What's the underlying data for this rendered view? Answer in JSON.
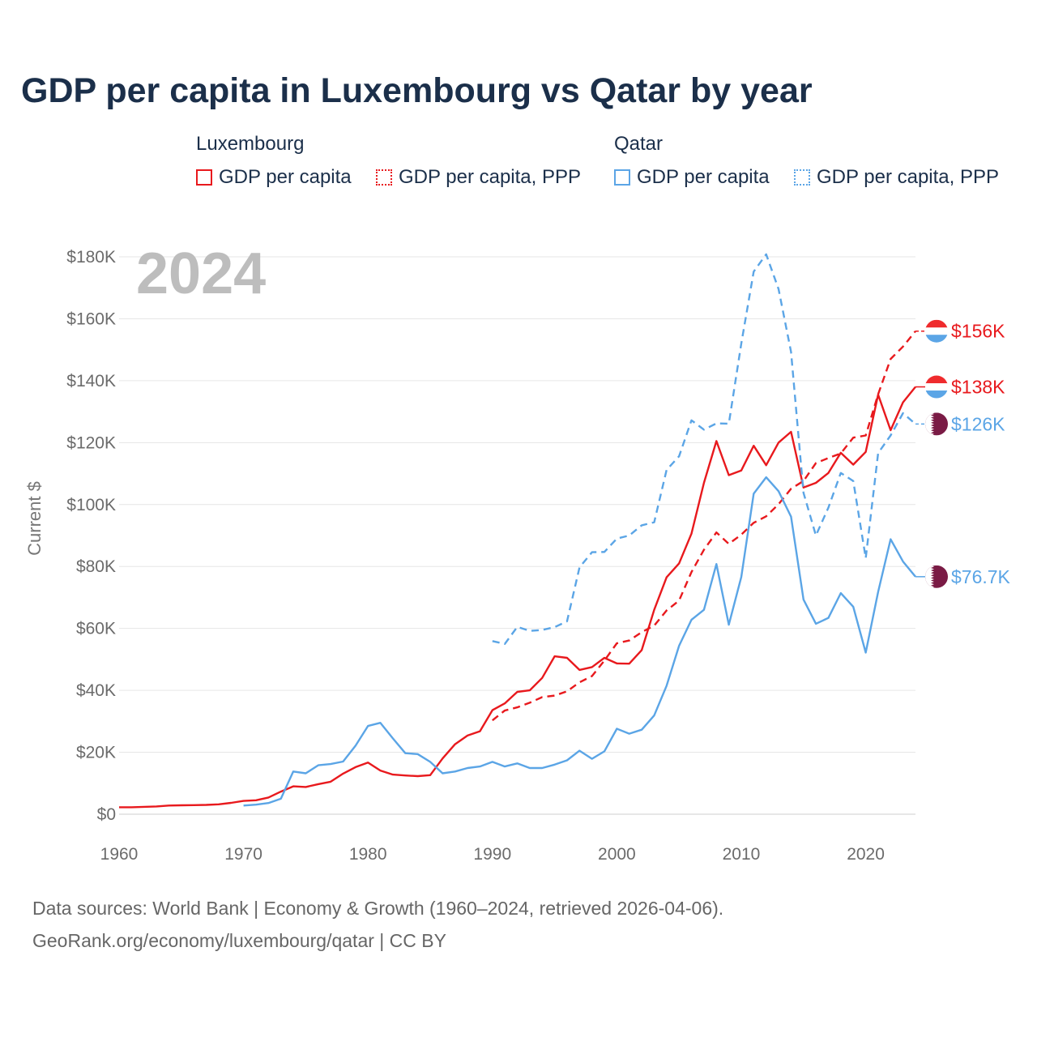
{
  "title": "GDP per capita in Luxembourg vs Qatar by year",
  "legend": {
    "groups": [
      {
        "name": "Luxembourg",
        "items": [
          {
            "label": "GDP per capita",
            "style": "solid",
            "color": "#e8191d"
          },
          {
            "label": "GDP per capita, PPP",
            "style": "dotted",
            "color": "#e8191d"
          }
        ]
      },
      {
        "name": "Qatar",
        "items": [
          {
            "label": "GDP per capita",
            "style": "solid",
            "color": "#5ba5e6"
          },
          {
            "label": "GDP per capita, PPP",
            "style": "dotted",
            "color": "#5ba5e6"
          }
        ]
      }
    ]
  },
  "year_label": "2024",
  "footer": {
    "line1": "Data sources: World Bank | Economy & Growth (1960–2024, retrieved 2026-04-06).",
    "line2": "GeoRank.org/economy/luxembourg/qatar | CC BY"
  },
  "chart_data": {
    "type": "line",
    "title": "GDP per capita in Luxembourg vs Qatar by year",
    "xlabel": "",
    "ylabel": "Current $",
    "xlim": [
      1960,
      2024
    ],
    "ylim": [
      0,
      180000
    ],
    "x_ticks": [
      1960,
      1970,
      1980,
      1990,
      2000,
      2010,
      2020
    ],
    "x_tick_labels": [
      "1960",
      "1970",
      "1980",
      "1990",
      "2000",
      "2010",
      "2020"
    ],
    "y_ticks": [
      0,
      20000,
      40000,
      60000,
      80000,
      100000,
      120000,
      140000,
      160000,
      180000
    ],
    "y_tick_labels": [
      "$0",
      "$20K",
      "$40K",
      "$60K",
      "$80K",
      "$100K",
      "$120K",
      "$140K",
      "$160K",
      "$180K"
    ],
    "grid": true,
    "series": [
      {
        "name": "Luxembourg GDP per capita",
        "color": "#e8191d",
        "dash": "solid",
        "end_label": "$138K",
        "flag": "luxembourg",
        "x": [
          1960,
          1961,
          1962,
          1963,
          1964,
          1965,
          1966,
          1967,
          1968,
          1969,
          1970,
          1971,
          1972,
          1973,
          1974,
          1975,
          1976,
          1977,
          1978,
          1979,
          1980,
          1981,
          1982,
          1983,
          1984,
          1985,
          1986,
          1987,
          1988,
          1989,
          1990,
          1991,
          1992,
          1993,
          1994,
          1995,
          1996,
          1997,
          1998,
          1999,
          2000,
          2001,
          2002,
          2003,
          2004,
          2005,
          2006,
          2007,
          2008,
          2009,
          2010,
          2011,
          2012,
          2013,
          2014,
          2015,
          2016,
          2017,
          2018,
          2019,
          2020,
          2021,
          2022,
          2023,
          2024
        ],
        "values": [
          2240,
          2260,
          2390,
          2510,
          2790,
          2880,
          2940,
          3000,
          3200,
          3650,
          4300,
          4500,
          5400,
          7300,
          9000,
          8800,
          9700,
          10500,
          13100,
          15200,
          16700,
          14100,
          12800,
          12500,
          12300,
          12600,
          18000,
          22600,
          25400,
          26800,
          33600,
          35800,
          39500,
          40000,
          44000,
          51000,
          50500,
          46600,
          47500,
          50500,
          48700,
          48600,
          53000,
          66000,
          76500,
          81000,
          90600,
          107000,
          120500,
          109500,
          111000,
          119000,
          112700,
          120000,
          123500,
          105500,
          107000,
          110200,
          116700,
          112900,
          117000,
          135500,
          124000,
          133000,
          138000
        ]
      },
      {
        "name": "Luxembourg GDP per capita, PPP",
        "color": "#e8191d",
        "dash": "dashed",
        "end_label": "$156K",
        "flag": "luxembourg",
        "x": [
          1990,
          1991,
          1992,
          1993,
          1994,
          1995,
          1996,
          1997,
          1998,
          1999,
          2000,
          2001,
          2002,
          2003,
          2004,
          2005,
          2006,
          2007,
          2008,
          2009,
          2010,
          2011,
          2012,
          2013,
          2014,
          2015,
          2016,
          2017,
          2018,
          2019,
          2020,
          2021,
          2022,
          2023,
          2024
        ],
        "values": [
          30300,
          33500,
          34500,
          36000,
          37800,
          38300,
          39700,
          42600,
          44600,
          49600,
          55200,
          56100,
          58800,
          60900,
          65800,
          69000,
          78200,
          85400,
          91000,
          87300,
          90300,
          94100,
          96200,
          100100,
          105100,
          107600,
          113400,
          115000,
          116500,
          121600,
          122300,
          135600,
          147000,
          151000,
          156000
        ]
      },
      {
        "name": "Qatar GDP per capita",
        "color": "#5ba5e6",
        "dash": "solid",
        "end_label": "$76.7K",
        "flag": "qatar",
        "x": [
          1970,
          1971,
          1972,
          1973,
          1974,
          1975,
          1976,
          1977,
          1978,
          1979,
          1980,
          1981,
          1982,
          1983,
          1984,
          1985,
          1986,
          1987,
          1988,
          1989,
          1990,
          1991,
          1992,
          1993,
          1994,
          1995,
          1996,
          1997,
          1998,
          1999,
          2000,
          2001,
          2002,
          2003,
          2004,
          2005,
          2006,
          2007,
          2008,
          2009,
          2010,
          2011,
          2012,
          2013,
          2014,
          2015,
          2016,
          2017,
          2018,
          2019,
          2020,
          2021,
          2022,
          2023,
          2024
        ],
        "values": [
          2800,
          3100,
          3600,
          5000,
          13800,
          13200,
          15800,
          16200,
          17000,
          22100,
          28500,
          29500,
          24500,
          19700,
          19400,
          16900,
          13200,
          13800,
          14900,
          15400,
          16900,
          15400,
          16400,
          14900,
          14900,
          16000,
          17400,
          20500,
          17900,
          20300,
          27600,
          26000,
          27300,
          31900,
          41500,
          54400,
          62800,
          66000,
          80800,
          61200,
          76600,
          103500,
          108800,
          104300,
          96100,
          69300,
          61500,
          63400,
          71400,
          67000,
          52200,
          71800,
          88800,
          81600,
          76700
        ]
      },
      {
        "name": "Qatar GDP per capita, PPP",
        "color": "#5ba5e6",
        "dash": "dashed",
        "end_label": "$126K",
        "flag": "qatar",
        "x": [
          1990,
          1991,
          1992,
          1993,
          1994,
          1995,
          1996,
          1997,
          1998,
          1999,
          2000,
          2001,
          2002,
          2003,
          2004,
          2005,
          2006,
          2007,
          2008,
          2009,
          2010,
          2011,
          2012,
          2013,
          2014,
          2015,
          2016,
          2017,
          2018,
          2019,
          2020,
          2021,
          2022,
          2023,
          2024
        ],
        "values": [
          55900,
          55000,
          60500,
          59200,
          59500,
          60400,
          62300,
          79700,
          84600,
          84700,
          89000,
          90000,
          93300,
          94300,
          111200,
          115600,
          127200,
          124200,
          126200,
          126100,
          152000,
          175200,
          180800,
          169600,
          149300,
          103800,
          90000,
          99000,
          110200,
          107600,
          82700,
          116600,
          122300,
          129500,
          126000
        ]
      }
    ]
  }
}
